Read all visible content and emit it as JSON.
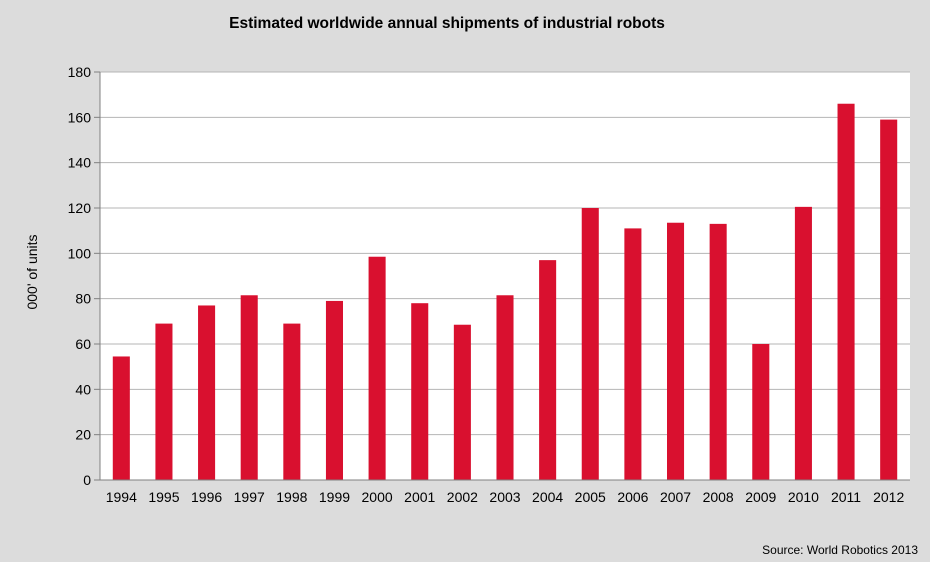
{
  "chart_data": {
    "type": "bar",
    "title": "Estimated worldwide annual shipments of industrial robots",
    "xlabel": "",
    "ylabel": "000' of units",
    "categories": [
      "1994",
      "1995",
      "1996",
      "1997",
      "1998",
      "1999",
      "2000",
      "2001",
      "2002",
      "2003",
      "2004",
      "2005",
      "2006",
      "2007",
      "2008",
      "2009",
      "2010",
      "2011",
      "2012"
    ],
    "values": [
      54.5,
      69,
      77,
      81.5,
      69,
      79,
      98.5,
      78,
      68.5,
      81.5,
      97,
      120,
      111,
      113.5,
      113,
      60,
      120.5,
      166,
      159
    ],
    "ylim": [
      0,
      180
    ],
    "yticks": [
      0,
      20,
      40,
      60,
      80,
      100,
      120,
      140,
      160,
      180
    ],
    "grid": true,
    "legend": "none",
    "bar_color": "#d9102f",
    "source": "Source: World Robotics 2013"
  }
}
